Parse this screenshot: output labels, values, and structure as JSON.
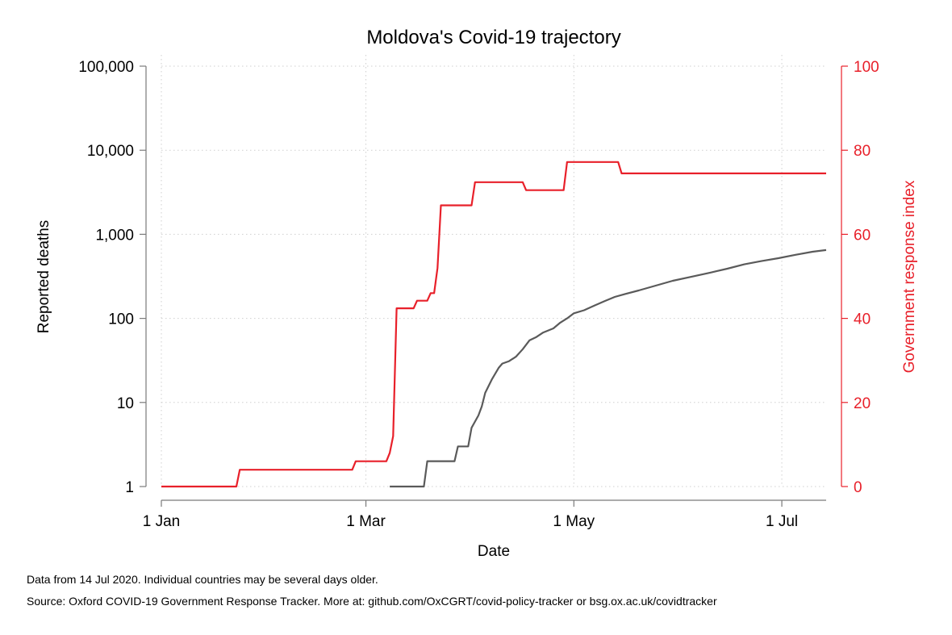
{
  "chart_data": {
    "type": "line",
    "title": "Moldova's Covid-19 trajectory",
    "xlabel": "Date",
    "ylabel_left": "Reported deaths",
    "ylabel_right": "Government response index",
    "x_ticks": [
      {
        "date": "2020-01-01",
        "label": "1 Jan"
      },
      {
        "date": "2020-03-01",
        "label": "1 Mar"
      },
      {
        "date": "2020-05-01",
        "label": "1 May"
      },
      {
        "date": "2020-07-01",
        "label": "1 Jul"
      }
    ],
    "xlim": [
      "2020-01-01",
      "2020-07-14"
    ],
    "y_left": {
      "scale": "log",
      "ylim": [
        1,
        100000
      ],
      "ticks": [
        {
          "value": 1,
          "label": "1"
        },
        {
          "value": 10,
          "label": "10"
        },
        {
          "value": 100,
          "label": "100"
        },
        {
          "value": 1000,
          "label": "1,000"
        },
        {
          "value": 10000,
          "label": "10,000"
        },
        {
          "value": 100000,
          "label": "100,000"
        }
      ]
    },
    "y_right": {
      "scale": "linear",
      "ylim": [
        0,
        100
      ],
      "ticks": [
        {
          "value": 0,
          "label": "0"
        },
        {
          "value": 20,
          "label": "20"
        },
        {
          "value": 40,
          "label": "40"
        },
        {
          "value": 60,
          "label": "60"
        },
        {
          "value": 80,
          "label": "80"
        },
        {
          "value": 100,
          "label": "100"
        }
      ]
    },
    "grid": true,
    "series": [
      {
        "axis": "left",
        "color": "#5a5a5a",
        "points": [
          [
            "2020-03-08",
            1
          ],
          [
            "2020-03-18",
            1
          ],
          [
            "2020-03-19",
            2
          ],
          [
            "2020-03-27",
            2
          ],
          [
            "2020-03-28",
            3
          ],
          [
            "2020-03-31",
            3
          ],
          [
            "2020-04-01",
            5
          ],
          [
            "2020-04-03",
            7
          ],
          [
            "2020-04-04",
            9
          ],
          [
            "2020-04-05",
            13
          ],
          [
            "2020-04-07",
            19
          ],
          [
            "2020-04-09",
            26
          ],
          [
            "2020-04-10",
            29
          ],
          [
            "2020-04-12",
            31
          ],
          [
            "2020-04-14",
            35
          ],
          [
            "2020-04-16",
            43
          ],
          [
            "2020-04-18",
            55
          ],
          [
            "2020-04-20",
            60
          ],
          [
            "2020-04-22",
            68
          ],
          [
            "2020-04-25",
            76
          ],
          [
            "2020-04-27",
            89
          ],
          [
            "2020-04-29",
            100
          ],
          [
            "2020-05-01",
            115
          ],
          [
            "2020-05-04",
            125
          ],
          [
            "2020-05-07",
            142
          ],
          [
            "2020-05-10",
            160
          ],
          [
            "2020-05-13",
            180
          ],
          [
            "2020-05-16",
            195
          ],
          [
            "2020-05-20",
            215
          ],
          [
            "2020-05-25",
            245
          ],
          [
            "2020-05-30",
            280
          ],
          [
            "2020-06-04",
            310
          ],
          [
            "2020-06-10",
            350
          ],
          [
            "2020-06-15",
            390
          ],
          [
            "2020-06-20",
            440
          ],
          [
            "2020-06-25",
            480
          ],
          [
            "2020-06-30",
            520
          ],
          [
            "2020-07-05",
            570
          ],
          [
            "2020-07-10",
            620
          ],
          [
            "2020-07-14",
            650
          ]
        ]
      },
      {
        "axis": "right",
        "color": "#e8202a",
        "points": [
          [
            "2020-01-01",
            0
          ],
          [
            "2020-01-23",
            0
          ],
          [
            "2020-01-24",
            4
          ],
          [
            "2020-02-26",
            4
          ],
          [
            "2020-02-27",
            6
          ],
          [
            "2020-03-07",
            6
          ],
          [
            "2020-03-08",
            8
          ],
          [
            "2020-03-09",
            12
          ],
          [
            "2020-03-10",
            42.4
          ],
          [
            "2020-03-15",
            42.4
          ],
          [
            "2020-03-16",
            44.2
          ],
          [
            "2020-03-19",
            44.2
          ],
          [
            "2020-03-20",
            46
          ],
          [
            "2020-03-21",
            46
          ],
          [
            "2020-03-22",
            52
          ],
          [
            "2020-03-23",
            66.9
          ],
          [
            "2020-04-01",
            66.9
          ],
          [
            "2020-04-02",
            72.4
          ],
          [
            "2020-04-16",
            72.4
          ],
          [
            "2020-04-17",
            70.5
          ],
          [
            "2020-04-28",
            70.5
          ],
          [
            "2020-04-29",
            77.2
          ],
          [
            "2020-05-14",
            77.2
          ],
          [
            "2020-05-15",
            74.5
          ],
          [
            "2020-07-14",
            74.5
          ]
        ]
      }
    ]
  },
  "footnotes": {
    "line1": "Data from 14 Jul 2020. Individual countries may be several days older.",
    "line2": "Source: Oxford COVID-19 Government Response Tracker. More at: github.com/OxCGRT/covid-policy-tracker or bsg.ox.ac.uk/covidtracker"
  }
}
